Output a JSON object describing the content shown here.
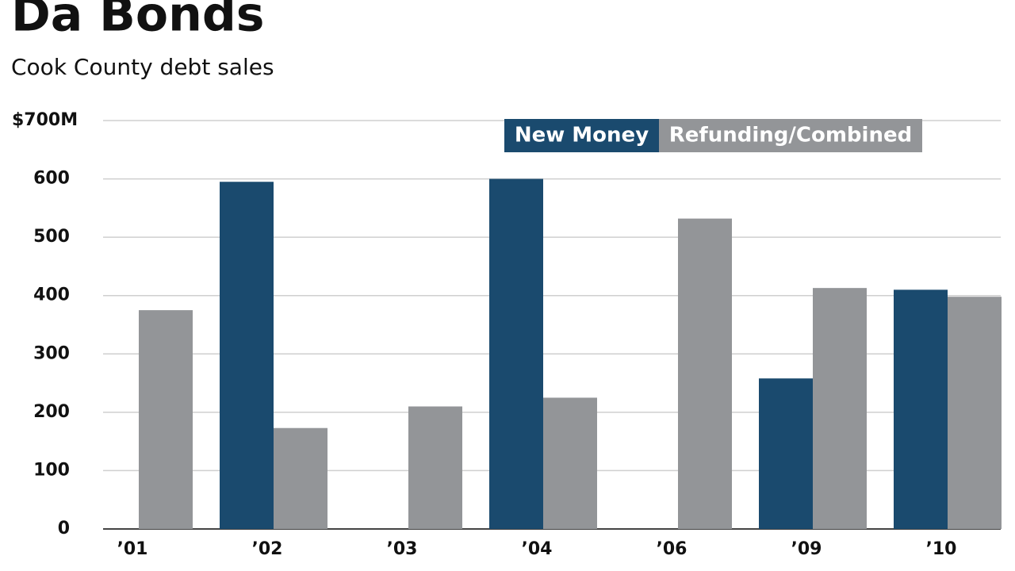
{
  "chart_data": {
    "type": "bar",
    "title": "Da Bonds",
    "subtitle": "Cook County debt sales",
    "categories": [
      "’01",
      "’02",
      "’03",
      "’04",
      "’06",
      "’09",
      "’10"
    ],
    "series": [
      {
        "name": "New Money",
        "color": "#1a4a6e",
        "values": [
          0,
          595,
          0,
          600,
          0,
          258,
          410
        ]
      },
      {
        "name": "Refunding/Combined",
        "color": "#939598",
        "values": [
          375,
          173,
          210,
          225,
          532,
          413,
          398
        ]
      }
    ],
    "ylim": [
      0,
      700
    ],
    "yticks": [
      0,
      100,
      200,
      300,
      400,
      500,
      600,
      {
        "value": 700,
        "label": "$700M"
      }
    ],
    "grid": true
  }
}
